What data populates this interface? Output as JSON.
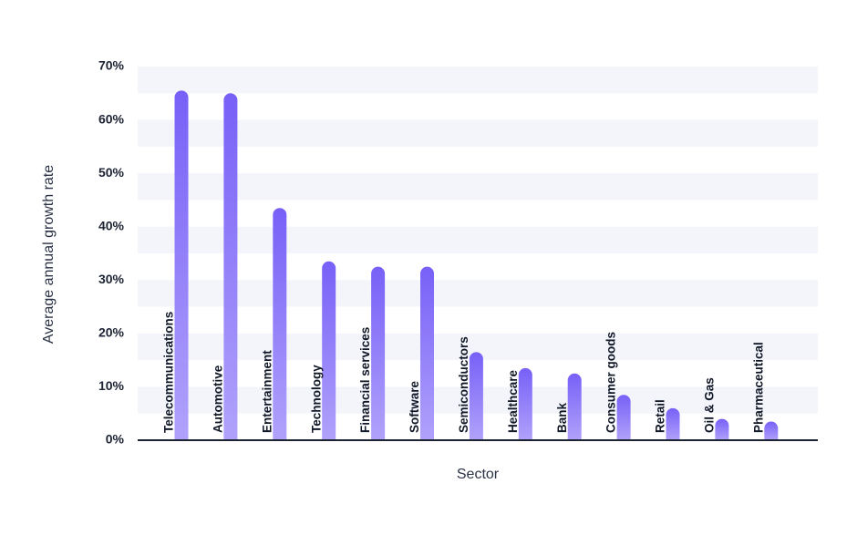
{
  "chart_data": {
    "type": "bar",
    "title": "",
    "xlabel": "Sector",
    "ylabel": "Average annual growth rate",
    "ylim": [
      0,
      70
    ],
    "yticks": [
      0,
      10,
      20,
      30,
      40,
      50,
      60,
      70
    ],
    "ytick_labels": [
      "0%",
      "10%",
      "20%",
      "30%",
      "40%",
      "50%",
      "60%",
      "70%"
    ],
    "categories": [
      "Telecommunications",
      "Automotive",
      "Entertainment",
      "Technology",
      "Financial services",
      "Software",
      "Semiconductors",
      "Healthcare",
      "Bank",
      "Consumer goods",
      "Retail",
      "Oil & Gas",
      "Pharmaceutical"
    ],
    "values": [
      65.5,
      65,
      43.5,
      33.5,
      32.5,
      32.5,
      16.5,
      13.5,
      12.5,
      8.5,
      6,
      4,
      3.5
    ],
    "grid": "alternating horizontal bands",
    "bar_color_top": "#7760f7",
    "bar_color_bottom": "#b0a2fb",
    "band_color": "#f3f5fb"
  }
}
